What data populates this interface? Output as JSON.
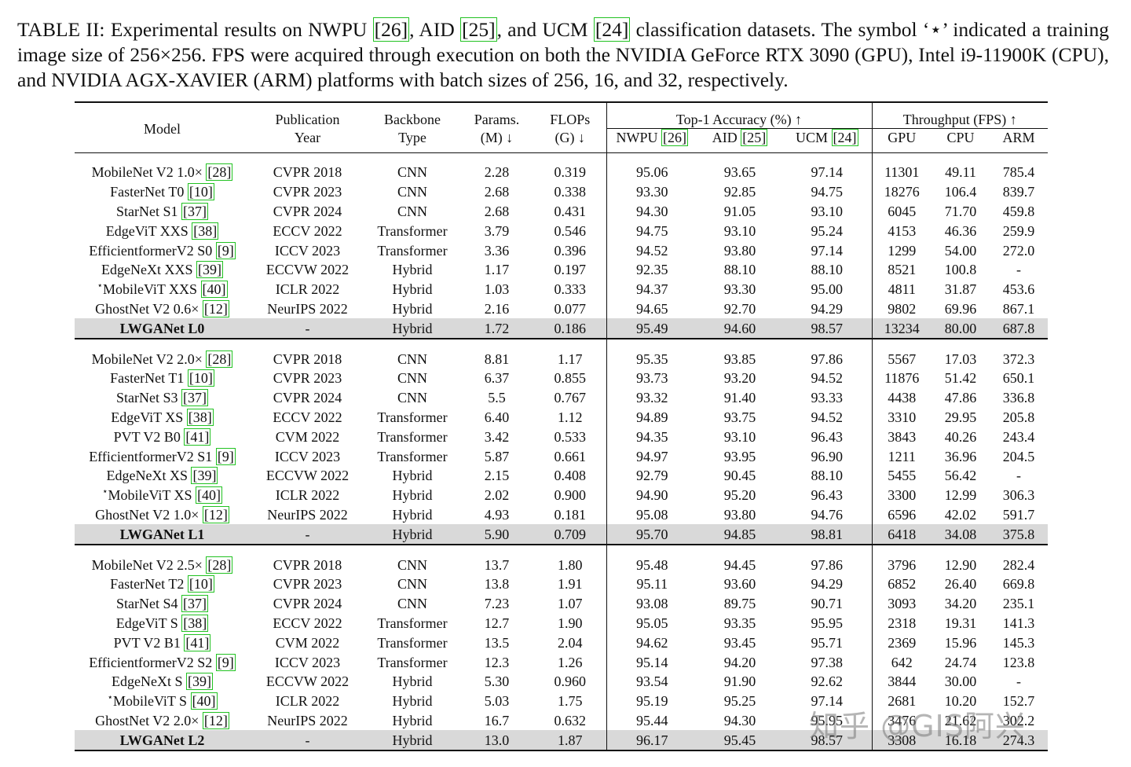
{
  "caption": {
    "prefix": "TABLE II: Experimental results on NWPU ",
    "ref_nwpu": "[26]",
    "mid1": ", AID ",
    "ref_aid": "[25]",
    "mid2": ", and UCM ",
    "ref_ucm": "[24]",
    "suffix": " classification datasets. The symbol ‘⋆’ indicated a training image size of 256×256. FPS were acquired through execution on both the NVIDIA GeForce RTX 3090 (GPU), Intel i9-11900K (CPU), and NVIDIA AGX-XAVIER (ARM) platforms with batch sizes of 256, 16, and 32, respectively."
  },
  "header": {
    "model": "Model",
    "pub1": "Publication",
    "pub2": "Year",
    "bb1": "Backbone",
    "bb2": "Type",
    "par1": "Params.",
    "par2": "(M) ↓",
    "flp1": "FLOPs",
    "flp2": "(G) ↓",
    "top1": "Top-1 Accuracy (%) ↑",
    "nwpu": "NWPU ",
    "nwpu_ref": "[26]",
    "aid": "AID ",
    "aid_ref": "[25]",
    "ucm": "UCM ",
    "ucm_ref": "[24]",
    "thr": "Throughput (FPS) ↑",
    "gpu": "GPU",
    "cpu": "CPU",
    "arm": "ARM"
  },
  "groups": [
    [
      {
        "star": "",
        "name": "MobileNet V2 1.0× ",
        "ref": "[28]",
        "year": "CVPR 2018",
        "type": "CNN",
        "params": "2.28",
        "flops": "0.319",
        "nwpu": "95.06",
        "aid": "93.65",
        "ucm": "97.14",
        "gpu": "11301",
        "cpu": "49.11",
        "arm": "785.4"
      },
      {
        "star": "",
        "name": "FasterNet T0 ",
        "ref": "[10]",
        "year": "CVPR 2023",
        "type": "CNN",
        "params": "2.68",
        "flops": "0.338",
        "nwpu": "93.30",
        "aid": "92.85",
        "ucm": "94.75",
        "gpu": "18276",
        "cpu": "106.4",
        "arm": "839.7"
      },
      {
        "star": "",
        "name": "StarNet S1 ",
        "ref": "[37]",
        "year": "CVPR 2024",
        "type": "CNN",
        "params": "2.68",
        "flops": "0.431",
        "nwpu": "94.30",
        "aid": "91.05",
        "ucm": "93.10",
        "gpu": "6045",
        "cpu": "71.70",
        "arm": "459.8"
      },
      {
        "star": "",
        "name": "EdgeViT XXS ",
        "ref": "[38]",
        "year": "ECCV 2022",
        "type": "Transformer",
        "params": "3.79",
        "flops": "0.546",
        "nwpu": "94.75",
        "aid": "93.10",
        "ucm": "95.24",
        "gpu": "4153",
        "cpu": "46.36",
        "arm": "259.9"
      },
      {
        "star": "",
        "name": "EfficientformerV2 S0 ",
        "ref": "[9]",
        "year": "ICCV 2023",
        "type": "Transformer",
        "params": "3.36",
        "flops": "0.396",
        "nwpu": "94.52",
        "aid": "93.80",
        "ucm": "97.14",
        "gpu": "1299",
        "cpu": "54.00",
        "arm": "272.0"
      },
      {
        "star": "",
        "name": "EdgeNeXt XXS ",
        "ref": "[39]",
        "year": "ECCVW 2022",
        "type": "Hybrid",
        "params": "1.17",
        "flops": "0.197",
        "nwpu": "92.35",
        "aid": "88.10",
        "ucm": "88.10",
        "gpu": "8521",
        "cpu": "100.8",
        "arm": "-"
      },
      {
        "star": "⋆",
        "name": "MobileViT XXS ",
        "ref": "[40]",
        "year": "ICLR 2022",
        "type": "Hybrid",
        "params": "1.03",
        "flops": "0.333",
        "nwpu": "94.37",
        "aid": "93.30",
        "ucm": "95.00",
        "gpu": "4811",
        "cpu": "31.87",
        "arm": "453.6"
      },
      {
        "star": "",
        "name": "GhostNet V2 0.6× ",
        "ref": "[12]",
        "year": "NeurIPS 2022",
        "type": "Hybrid",
        "params": "2.16",
        "flops": "0.077",
        "nwpu": "94.65",
        "aid": "92.70",
        "ucm": "94.29",
        "gpu": "9802",
        "cpu": "69.96",
        "arm": "867.1"
      },
      {
        "star": "",
        "name": "LWGANet L0",
        "ref": "",
        "year": "-",
        "type": "Hybrid",
        "params": "1.72",
        "flops": "0.186",
        "nwpu": "95.49",
        "aid": "94.60",
        "ucm": "98.57",
        "gpu": "13234",
        "cpu": "80.00",
        "arm": "687.8",
        "ours": true
      }
    ],
    [
      {
        "star": "",
        "name": "MobileNet V2 2.0× ",
        "ref": "[28]",
        "year": "CVPR 2018",
        "type": "CNN",
        "params": "8.81",
        "flops": "1.17",
        "nwpu": "95.35",
        "aid": "93.85",
        "ucm": "97.86",
        "gpu": "5567",
        "cpu": "17.03",
        "arm": "372.3"
      },
      {
        "star": "",
        "name": "FasterNet T1 ",
        "ref": "[10]",
        "year": "CVPR 2023",
        "type": "CNN",
        "params": "6.37",
        "flops": "0.855",
        "nwpu": "93.73",
        "aid": "93.20",
        "ucm": "94.52",
        "gpu": "11876",
        "cpu": "51.42",
        "arm": "650.1"
      },
      {
        "star": "",
        "name": "StarNet S3 ",
        "ref": "[37]",
        "year": "CVPR 2024",
        "type": "CNN",
        "params": "5.5",
        "flops": "0.767",
        "nwpu": "93.32",
        "aid": "91.40",
        "ucm": "93.33",
        "gpu": "4438",
        "cpu": "47.86",
        "arm": "336.8"
      },
      {
        "star": "",
        "name": "EdgeViT XS ",
        "ref": "[38]",
        "year": "ECCV 2022",
        "type": "Transformer",
        "params": "6.40",
        "flops": "1.12",
        "nwpu": "94.89",
        "aid": "93.75",
        "ucm": "94.52",
        "gpu": "3310",
        "cpu": "29.95",
        "arm": "205.8"
      },
      {
        "star": "",
        "name": "PVT V2 B0 ",
        "ref": "[41]",
        "year": "CVM 2022",
        "type": "Transformer",
        "params": "3.42",
        "flops": "0.533",
        "nwpu": "94.35",
        "aid": "93.10",
        "ucm": "96.43",
        "gpu": "3843",
        "cpu": "40.26",
        "arm": "243.4"
      },
      {
        "star": "",
        "name": "EfficientformerV2 S1 ",
        "ref": "[9]",
        "year": "ICCV 2023",
        "type": "Transformer",
        "params": "5.87",
        "flops": "0.661",
        "nwpu": "94.97",
        "aid": "93.95",
        "ucm": "96.90",
        "gpu": "1211",
        "cpu": "36.96",
        "arm": "204.5"
      },
      {
        "star": "",
        "name": "EdgeNeXt XS ",
        "ref": "[39]",
        "year": "ECCVW 2022",
        "type": "Hybrid",
        "params": "2.15",
        "flops": "0.408",
        "nwpu": "92.79",
        "aid": "90.45",
        "ucm": "88.10",
        "gpu": "5455",
        "cpu": "56.42",
        "arm": "-"
      },
      {
        "star": "⋆",
        "name": "MobileViT XS ",
        "ref": "[40]",
        "year": "ICLR 2022",
        "type": "Hybrid",
        "params": "2.02",
        "flops": "0.900",
        "nwpu": "94.90",
        "aid": "95.20",
        "ucm": "96.43",
        "gpu": "3300",
        "cpu": "12.99",
        "arm": "306.3"
      },
      {
        "star": "",
        "name": "GhostNet V2 1.0× ",
        "ref": "[12]",
        "year": "NeurIPS 2022",
        "type": "Hybrid",
        "params": "4.93",
        "flops": "0.181",
        "nwpu": "95.08",
        "aid": "93.80",
        "ucm": "94.76",
        "gpu": "6596",
        "cpu": "42.02",
        "arm": "591.7"
      },
      {
        "star": "",
        "name": "LWGANet L1",
        "ref": "",
        "year": "-",
        "type": "Hybrid",
        "params": "5.90",
        "flops": "0.709",
        "nwpu": "95.70",
        "aid": "94.85",
        "ucm": "98.81",
        "gpu": "6418",
        "cpu": "34.08",
        "arm": "375.8",
        "ours": true
      }
    ],
    [
      {
        "star": "",
        "name": "MobileNet V2 2.5× ",
        "ref": "[28]",
        "year": "CVPR 2018",
        "type": "CNN",
        "params": "13.7",
        "flops": "1.80",
        "nwpu": "95.48",
        "aid": "94.45",
        "ucm": "97.86",
        "gpu": "3796",
        "cpu": "12.90",
        "arm": "282.4"
      },
      {
        "star": "",
        "name": "FasterNet T2 ",
        "ref": "[10]",
        "year": "CVPR 2023",
        "type": "CNN",
        "params": "13.8",
        "flops": "1.91",
        "nwpu": "95.11",
        "aid": "93.60",
        "ucm": "94.29",
        "gpu": "6852",
        "cpu": "26.40",
        "arm": "669.8"
      },
      {
        "star": "",
        "name": "StarNet S4 ",
        "ref": "[37]",
        "year": "CVPR 2024",
        "type": "CNN",
        "params": "7.23",
        "flops": "1.07",
        "nwpu": "93.08",
        "aid": "89.75",
        "ucm": "90.71",
        "gpu": "3093",
        "cpu": "34.20",
        "arm": "235.1"
      },
      {
        "star": "",
        "name": "EdgeViT S ",
        "ref": "[38]",
        "year": "ECCV 2022",
        "type": "Transformer",
        "params": "12.7",
        "flops": "1.90",
        "nwpu": "95.05",
        "aid": "93.35",
        "ucm": "95.95",
        "gpu": "2318",
        "cpu": "19.31",
        "arm": "141.3"
      },
      {
        "star": "",
        "name": "PVT V2 B1 ",
        "ref": "[41]",
        "year": "CVM 2022",
        "type": "Transformer",
        "params": "13.5",
        "flops": "2.04",
        "nwpu": "94.62",
        "aid": "93.45",
        "ucm": "95.71",
        "gpu": "2369",
        "cpu": "15.96",
        "arm": "145.3"
      },
      {
        "star": "",
        "name": "EfficientformerV2 S2 ",
        "ref": "[9]",
        "year": "ICCV 2023",
        "type": "Transformer",
        "params": "12.3",
        "flops": "1.26",
        "nwpu": "95.14",
        "aid": "94.20",
        "ucm": "97.38",
        "gpu": "642",
        "cpu": "24.74",
        "arm": "123.8"
      },
      {
        "star": "",
        "name": "EdgeNeXt S ",
        "ref": "[39]",
        "year": "ECCVW 2022",
        "type": "Hybrid",
        "params": "5.30",
        "flops": "0.960",
        "nwpu": "93.54",
        "aid": "91.90",
        "ucm": "92.62",
        "gpu": "3844",
        "cpu": "30.00",
        "arm": "-"
      },
      {
        "star": "⋆",
        "name": "MobileViT S ",
        "ref": "[40]",
        "year": "ICLR 2022",
        "type": "Hybrid",
        "params": "5.03",
        "flops": "1.75",
        "nwpu": "95.19",
        "aid": "95.25",
        "ucm": "97.14",
        "gpu": "2681",
        "cpu": "10.20",
        "arm": "152.7"
      },
      {
        "star": "",
        "name": "GhostNet V2 2.0× ",
        "ref": "[12]",
        "year": "NeurIPS 2022",
        "type": "Hybrid",
        "params": "16.7",
        "flops": "0.632",
        "nwpu": "95.44",
        "aid": "94.30",
        "ucm": "95.95",
        "gpu": "3476",
        "cpu": "21.62",
        "arm": "302.2"
      },
      {
        "star": "",
        "name": "LWGANet L2",
        "ref": "",
        "year": "-",
        "type": "Hybrid",
        "params": "13.0",
        "flops": "1.87",
        "nwpu": "96.17",
        "aid": "95.45",
        "ucm": "98.57",
        "gpu": "3308",
        "cpu": "16.18",
        "arm": "274.3",
        "ours": true
      }
    ]
  ],
  "watermark": "知乎 @GIS阿兴"
}
